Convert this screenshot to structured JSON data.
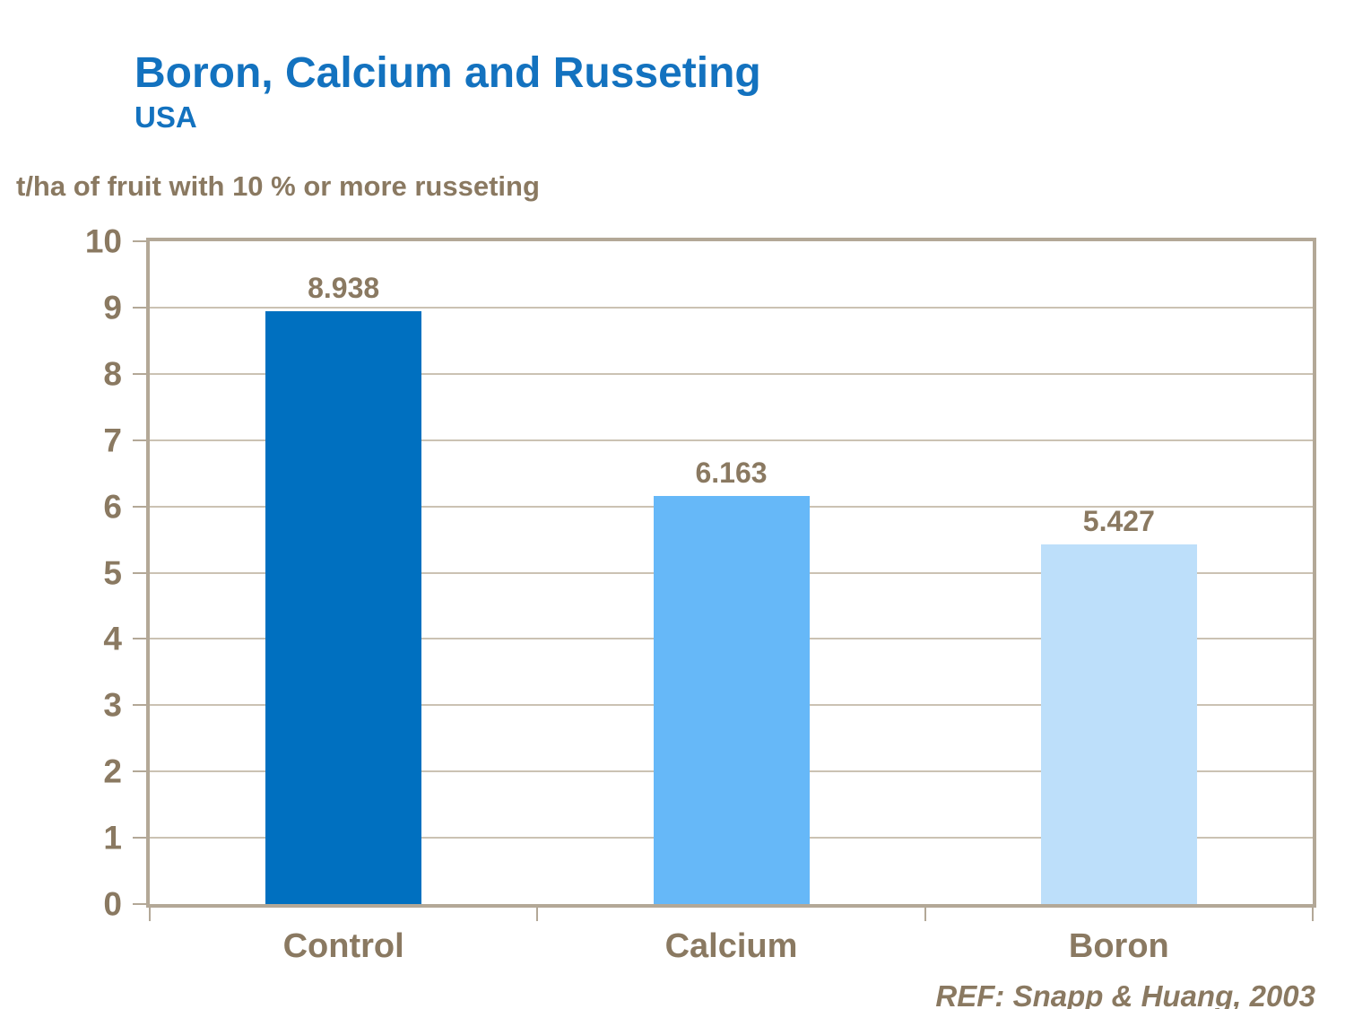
{
  "header": {
    "title": "Boron, Calcium and Russeting",
    "subtitle": "USA"
  },
  "axis": {
    "y_title": "t/ha of fruit with 10 % or more russeting"
  },
  "footer": {
    "reference": "REF: Snapp & Huang, 2003"
  },
  "colors": {
    "title_blue": "#1372BF",
    "label_brown": "#8A7961",
    "frame_tan": "#B3A897",
    "gridline_tan": "#CBC2B3"
  },
  "chart_data": {
    "type": "bar",
    "title": "Boron, Calcium and Russeting",
    "subtitle": "USA",
    "ylabel": "t/ha of fruit with 10 % or more russeting",
    "xlabel": "",
    "categories": [
      "Control",
      "Calcium",
      "Boron"
    ],
    "values": [
      8.938,
      6.163,
      5.427
    ],
    "data_labels": [
      "8.938",
      "6.163",
      "5.427"
    ],
    "bar_colors": [
      "#0070C0",
      "#66B8F8",
      "#BDDFFA"
    ],
    "ylim": [
      0,
      10
    ],
    "ytick_step": 1,
    "grid": true,
    "legend": false,
    "annotation": "REF: Snapp & Huang, 2003"
  }
}
